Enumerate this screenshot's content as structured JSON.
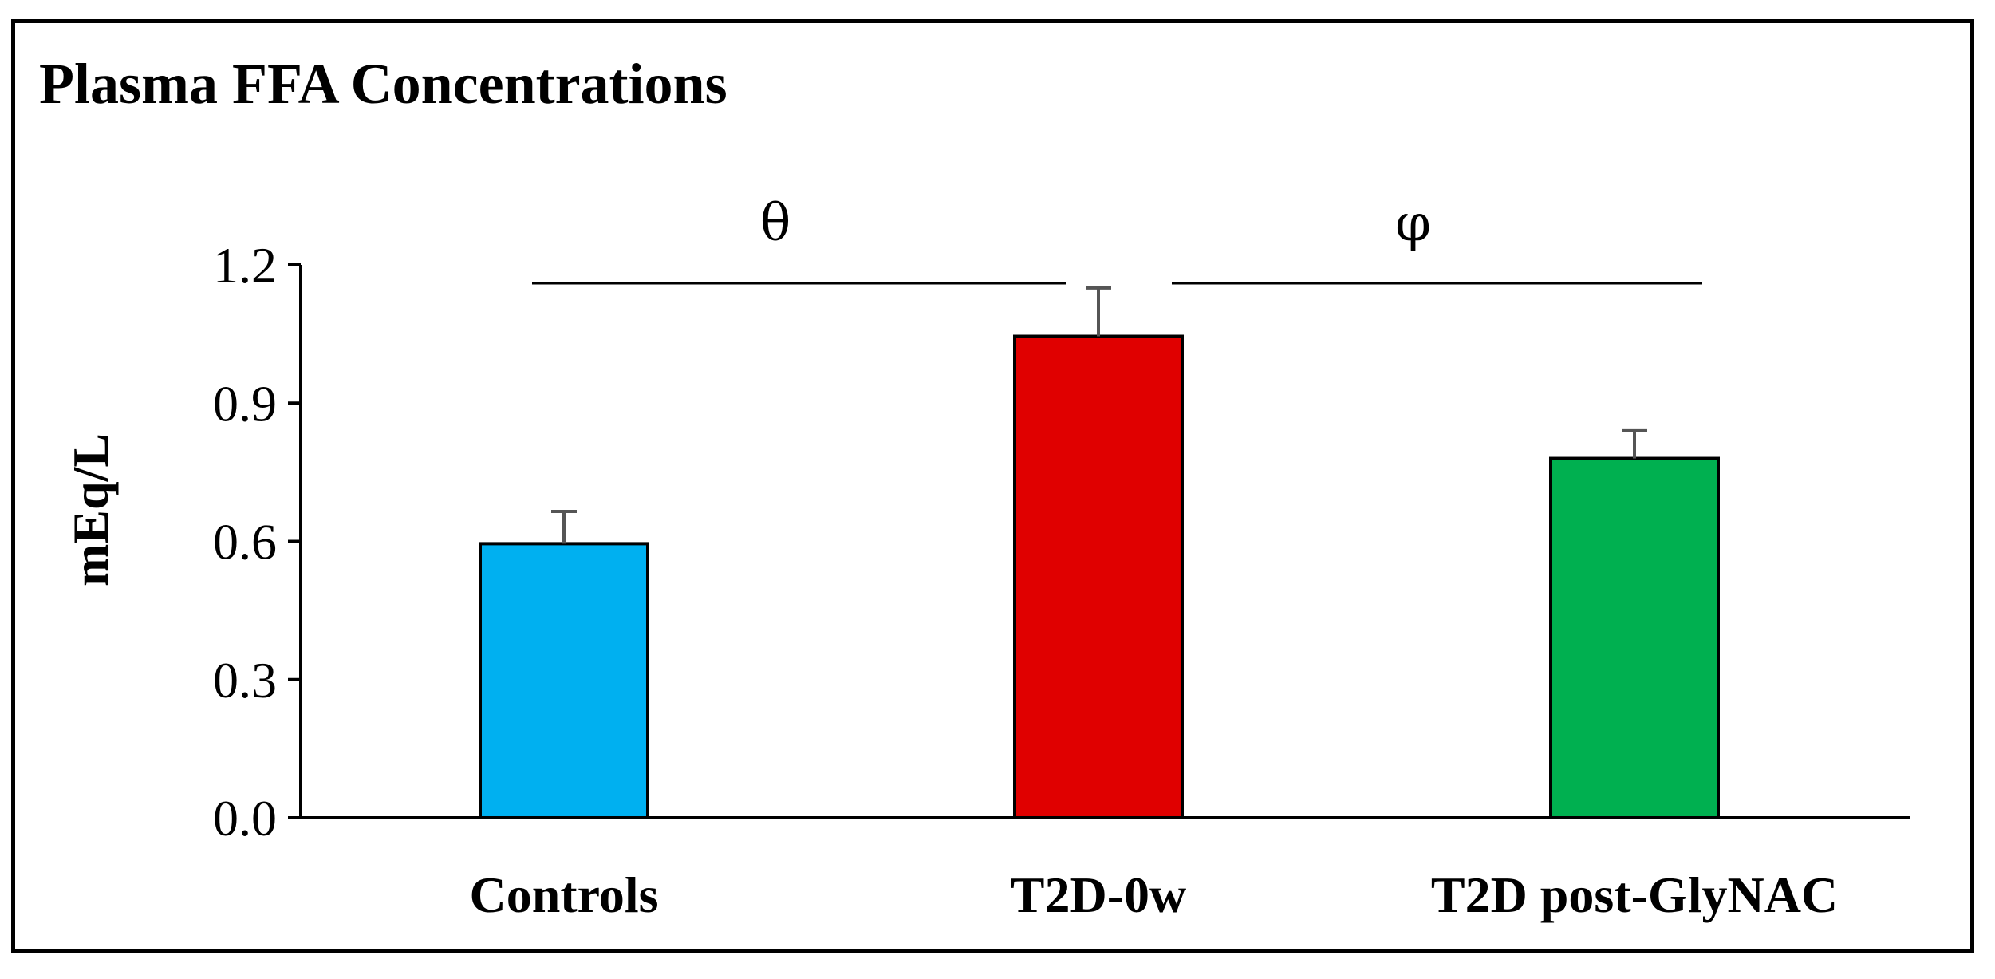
{
  "chart_data": {
    "type": "bar",
    "title": "Plasma FFA Concentrations",
    "xlabel": "",
    "ylabel": "mEq/L",
    "ylim": [
      0,
      1.2
    ],
    "yticks": [
      "0.0",
      "0.3",
      "0.6",
      "0.9",
      "1.2"
    ],
    "ytick_values": [
      0,
      0.3,
      0.6,
      0.9,
      1.2
    ],
    "categories": [
      "Controls",
      "T2D-0w",
      "T2D post-GlyNAC"
    ],
    "values": [
      0.595,
      1.045,
      0.78
    ],
    "errors": [
      0.07,
      0.105,
      0.06
    ],
    "colors": [
      "#00b0f0",
      "#e00000",
      "#00b050"
    ],
    "grid": false,
    "significance": [
      {
        "symbol": "θ",
        "from": 0,
        "to": 1
      },
      {
        "symbol": "φ",
        "from": 1,
        "to": 2
      }
    ]
  }
}
